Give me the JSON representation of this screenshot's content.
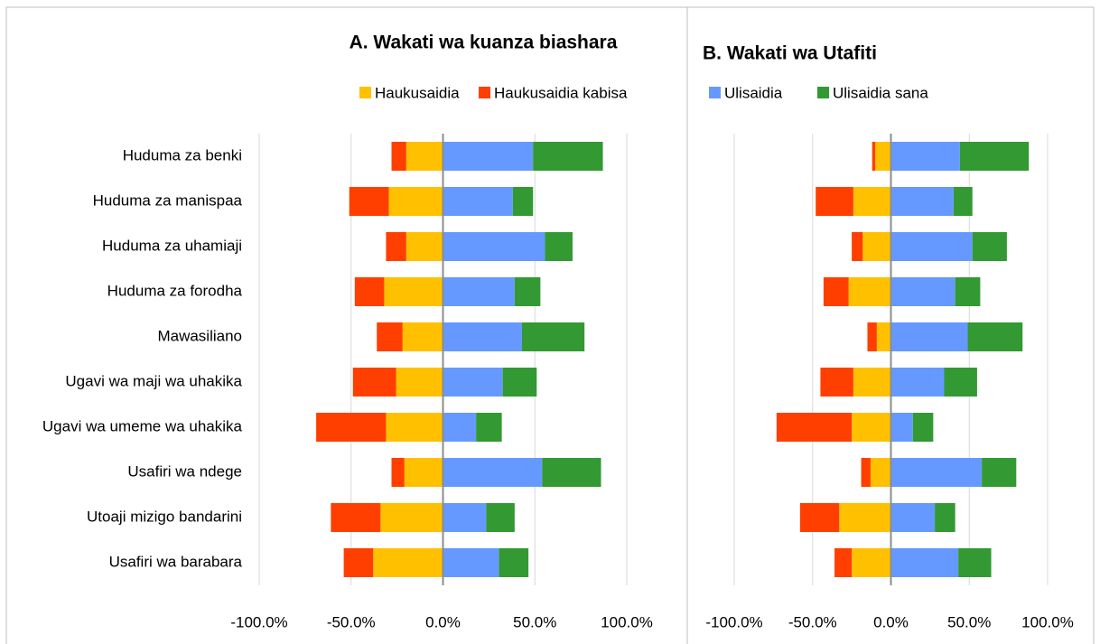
{
  "chart_data": [
    {
      "type": "bar",
      "orientation": "horizontal",
      "stacked": true,
      "title": "A. Wakati wa kuanza biashara",
      "categories": [
        "Huduma za benki",
        "Huduma za manispaa",
        "Huduma za uhamiaji",
        "Huduma za forodha",
        "Mawasiliano",
        "Ugavi wa maji wa uhakika",
        "Ugavi wa umeme wa uhakika",
        "Usafiri wa ndege",
        "Utoaji mizigo bandarini",
        "Usafiri wa barabara"
      ],
      "series": [
        {
          "name": "Haukusaidia",
          "color": "#ffc000",
          "values": [
            -20,
            -29.5,
            -20,
            -32,
            -22,
            -25.5,
            -31,
            -21,
            -34,
            -38
          ]
        },
        {
          "name": "Haukusaidia kabisa",
          "color": "#ff3f00",
          "values": [
            -8,
            -21.5,
            -11,
            -16,
            -14,
            -23.5,
            -38,
            -7,
            -27,
            -16
          ]
        },
        {
          "name": "Ulisaidia",
          "color": "#6699ff",
          "values": [
            49,
            38,
            55.5,
            39,
            43,
            32.5,
            18,
            54,
            23.5,
            30.5
          ]
        },
        {
          "name": "Ulisaidia sana",
          "color": "#339933",
          "values": [
            38,
            11,
            15,
            14,
            34,
            18.5,
            14,
            32,
            15.5,
            16
          ]
        }
      ],
      "xlim": [
        -100,
        100
      ],
      "xticks": [
        {
          "value": -100,
          "label": "-100.0%"
        },
        {
          "value": -50,
          "label": "-50.0%"
        },
        {
          "value": 0,
          "label": "0.0%"
        },
        {
          "value": 50,
          "label": "50.0%"
        },
        {
          "value": 100,
          "label": "100.0%"
        }
      ],
      "grid": true
    },
    {
      "type": "bar",
      "orientation": "horizontal",
      "stacked": true,
      "title": "B. Wakati wa Utafiti",
      "categories": [
        null,
        null,
        null,
        null,
        null,
        null,
        null,
        null,
        null,
        null
      ],
      "series": [
        {
          "name": "Haukusaidia",
          "color": "#ffc000",
          "values": [
            -10,
            -24,
            -18,
            -27,
            -9,
            -24,
            -25,
            -13,
            -33,
            -25
          ]
        },
        {
          "name": "Haukusaidia kabisa",
          "color": "#ff3f00",
          "values": [
            -2,
            -24,
            -7,
            -16,
            -6,
            -21,
            -48,
            -6,
            -25,
            -11
          ]
        },
        {
          "name": "Ulisaidia",
          "color": "#6699ff",
          "values": [
            44,
            40,
            52,
            41,
            49,
            34,
            14,
            58,
            28,
            43
          ]
        },
        {
          "name": "Ulisaidia sana",
          "color": "#339933",
          "values": [
            44,
            12,
            22,
            16,
            35,
            21,
            13,
            22,
            13,
            21
          ]
        }
      ],
      "xlim": [
        -100,
        100
      ],
      "xticks": [
        {
          "value": -100,
          "label": "-100.0%"
        },
        {
          "value": -50,
          "label": "-50.0%"
        },
        {
          "value": 0,
          "label": "0.0%"
        },
        {
          "value": 50,
          "label": "50.0%"
        },
        {
          "value": 100,
          "label": "100.0%"
        }
      ],
      "grid": true
    }
  ]
}
